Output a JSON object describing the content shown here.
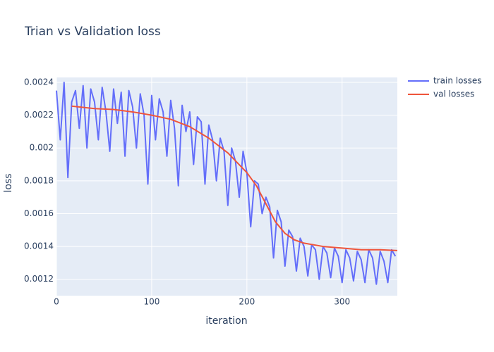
{
  "chart_data": {
    "type": "line",
    "title": "Trian vs Validation loss",
    "x_label": "iteration",
    "y_label": "loss",
    "xlim": [
      0,
      358
    ],
    "xticks": [
      0,
      100,
      200,
      300
    ],
    "ylim": [
      0.0011,
      0.00243
    ],
    "yticks": [
      0.0012,
      0.0014,
      0.0016,
      0.0018,
      0.002,
      0.0022,
      0.0024
    ],
    "grid": true,
    "legend": "right",
    "series": [
      {
        "name": "train losses",
        "color": "#636efa",
        "x": [
          0,
          4,
          8,
          12,
          16,
          20,
          24,
          28,
          32,
          36,
          40,
          44,
          48,
          52,
          56,
          60,
          64,
          68,
          72,
          76,
          80,
          84,
          88,
          92,
          96,
          100,
          104,
          108,
          112,
          116,
          120,
          124,
          128,
          132,
          136,
          140,
          144,
          148,
          152,
          156,
          160,
          164,
          168,
          172,
          176,
          180,
          184,
          188,
          192,
          196,
          200,
          204,
          208,
          212,
          216,
          220,
          224,
          228,
          232,
          236,
          240,
          244,
          248,
          252,
          256,
          260,
          264,
          268,
          272,
          276,
          280,
          284,
          288,
          292,
          296,
          300,
          304,
          308,
          312,
          316,
          320,
          324,
          328,
          332,
          336,
          340,
          344,
          348,
          352,
          356
        ],
        "values": [
          0.00235,
          0.00205,
          0.0024,
          0.00182,
          0.00228,
          0.00235,
          0.00212,
          0.00238,
          0.002,
          0.00236,
          0.00228,
          0.00205,
          0.00237,
          0.00222,
          0.00198,
          0.00236,
          0.00215,
          0.00234,
          0.00195,
          0.00235,
          0.00225,
          0.002,
          0.00233,
          0.0022,
          0.00178,
          0.00232,
          0.00205,
          0.0023,
          0.00222,
          0.00195,
          0.00229,
          0.00212,
          0.00177,
          0.00226,
          0.0021,
          0.00222,
          0.0019,
          0.00219,
          0.00216,
          0.00178,
          0.00214,
          0.00205,
          0.0018,
          0.00206,
          0.00198,
          0.00165,
          0.002,
          0.00192,
          0.0017,
          0.00198,
          0.00185,
          0.00152,
          0.0018,
          0.00178,
          0.0016,
          0.0017,
          0.00164,
          0.00133,
          0.00162,
          0.00155,
          0.00128,
          0.0015,
          0.00146,
          0.00125,
          0.00145,
          0.0014,
          0.00122,
          0.00141,
          0.00138,
          0.0012,
          0.0014,
          0.00136,
          0.00121,
          0.00139,
          0.00134,
          0.00118,
          0.00138,
          0.00133,
          0.00119,
          0.00137,
          0.00132,
          0.00118,
          0.00138,
          0.00133,
          0.00117,
          0.00137,
          0.00131,
          0.00118,
          0.00138,
          0.00134
        ]
      },
      {
        "name": "val losses",
        "color": "#ef553b",
        "x": [
          16,
          40,
          60,
          80,
          100,
          120,
          140,
          160,
          180,
          200,
          210,
          220,
          230,
          240,
          250,
          260,
          280,
          300,
          320,
          340,
          358
        ],
        "values": [
          0.002255,
          0.00224,
          0.002235,
          0.00222,
          0.0022,
          0.002175,
          0.00213,
          0.00206,
          0.00197,
          0.00185,
          0.00177,
          0.00166,
          0.00155,
          0.00148,
          0.00144,
          0.00142,
          0.0014,
          0.00139,
          0.00138,
          0.00138,
          0.001375
        ]
      }
    ]
  }
}
